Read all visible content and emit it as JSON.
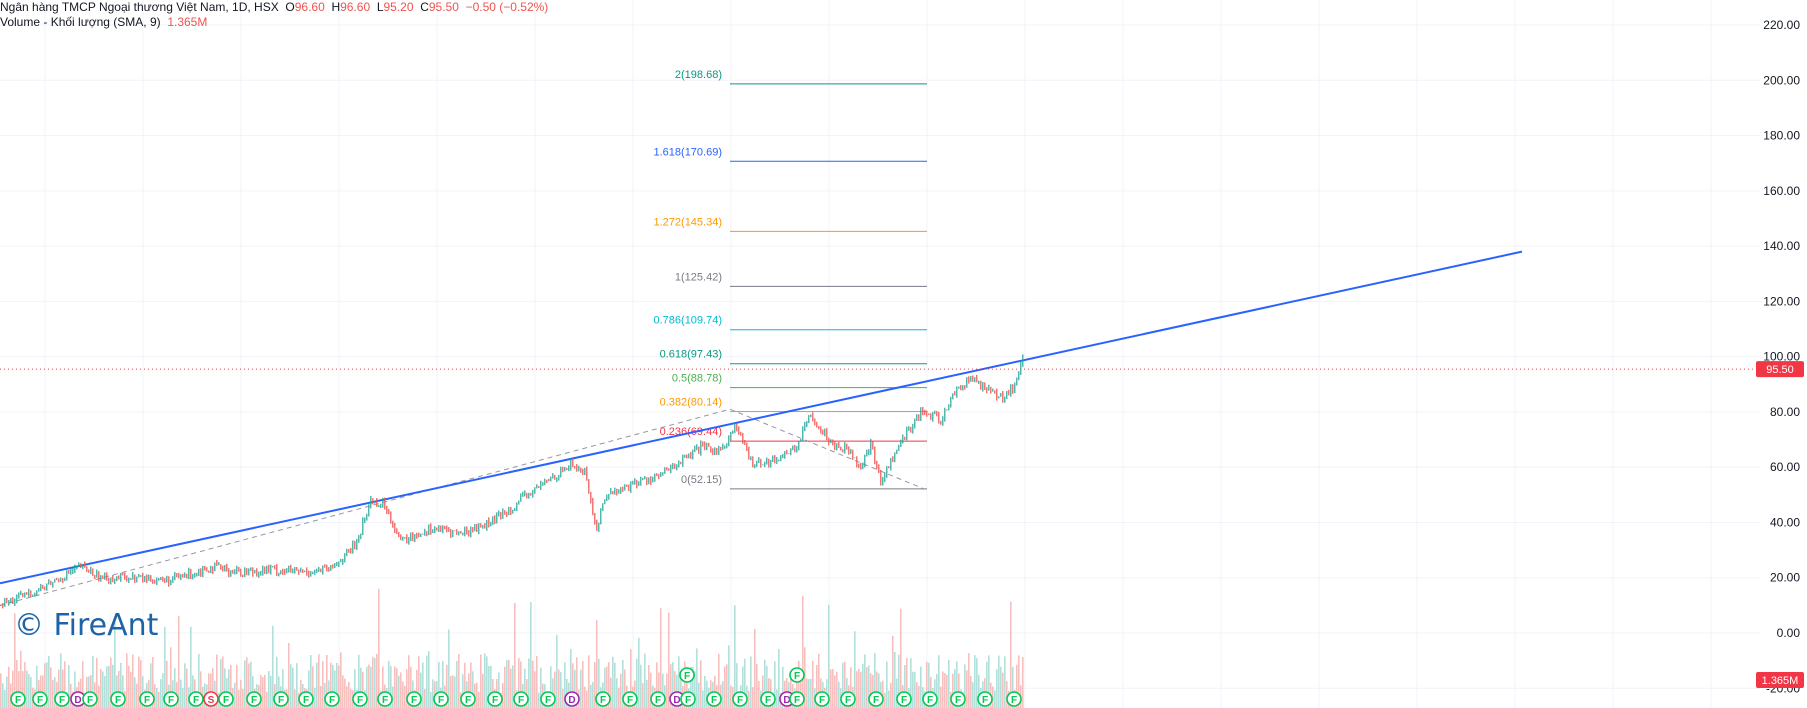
{
  "legend": {
    "symbol": "Ngân hàng TMCP Ngoại thương Việt Nam, 1D, HSX",
    "open_label": "O",
    "open": "96.60",
    "high_label": "H",
    "high": "96.60",
    "low_label": "L",
    "low": "95.20",
    "close_label": "C",
    "close": "95.50",
    "change": "−0.50 (−0.52%)",
    "volume_title": "Volume - Khối lượng (SMA, 9)",
    "volume_value": "1.365M"
  },
  "watermark": "© FireAnt",
  "colors": {
    "up": "#26a69a",
    "down": "#ef5350",
    "trend": "#2962ff",
    "fib_0": "#787b86",
    "fib_0236": "#f23645",
    "fib_0382": "#ff9800",
    "fib_05": "#4caf50",
    "fib_0618": "#089981",
    "fib_0786": "#00bcd4",
    "fib_1": "#787b86",
    "fib_1272": "#ff9800",
    "fib_1618": "#2962ff",
    "fib_2": "#089981",
    "price_tag": "#f23645"
  },
  "chart_data": {
    "type": "line",
    "title": "",
    "y_axis": {
      "range": [
        -20,
        220
      ],
      "ticks": [
        220,
        200,
        180,
        160,
        140,
        120,
        100,
        80,
        60,
        40,
        20,
        0,
        -20
      ],
      "tick_labels": [
        "220.00",
        "200.00",
        "180.00",
        "160.00",
        "140.00",
        "120.00",
        "100.00",
        "80.00",
        "60.00",
        "40.00",
        "20.00",
        "0.00",
        "-20.00"
      ]
    },
    "grid": true,
    "last_price": 95.5,
    "last_price_label": "95.50",
    "volume_label": "1.365M",
    "price_series": {
      "name": "",
      "x": [
        0,
        40,
        80,
        100,
        130,
        170,
        210,
        240,
        270,
        300,
        330,
        355,
        370,
        385,
        400,
        430,
        460,
        490,
        520,
        550,
        570,
        585,
        595,
        605,
        620,
        640,
        660,
        680,
        700,
        720,
        735,
        750,
        770,
        795,
        810,
        830,
        850,
        860,
        870,
        880,
        890,
        905,
        920,
        940,
        955,
        970,
        985,
        1000,
        1015,
        1022
      ],
      "y": [
        10,
        16,
        24,
        20,
        20,
        19,
        24,
        22,
        23,
        22,
        23,
        32,
        48,
        46,
        33,
        38,
        36,
        40,
        48,
        56,
        61,
        58,
        37,
        50,
        52,
        55,
        57,
        62,
        67,
        66,
        75,
        62,
        62,
        67,
        79,
        69,
        66,
        60,
        68,
        55,
        62,
        72,
        80,
        77,
        88,
        92,
        89,
        85,
        90,
        99
      ]
    },
    "trendline": {
      "x": [
        0,
        1522
      ],
      "y": [
        18,
        138
      ]
    },
    "dashed_swing": {
      "x": [
        0,
        730,
        925
      ],
      "y": [
        10,
        81,
        52
      ]
    },
    "fibonacci": {
      "levels": [
        {
          "ratio": "0",
          "price": 52.15,
          "label": "0(52.15)",
          "color": "#787b86"
        },
        {
          "ratio": "0.236",
          "price": 69.44,
          "label": "0.236(69.44)",
          "color": "#f23645"
        },
        {
          "ratio": "0.382",
          "price": 80.14,
          "label": "0.382(80.14)",
          "color": "#ff9800"
        },
        {
          "ratio": "0.5",
          "price": 88.78,
          "label": "0.5(88.78)",
          "color": "#4caf50"
        },
        {
          "ratio": "0.618",
          "price": 97.43,
          "label": "0.618(97.43)",
          "color": "#089981"
        },
        {
          "ratio": "0.786",
          "price": 109.74,
          "label": "0.786(109.74)",
          "color": "#00bcd4"
        },
        {
          "ratio": "1",
          "price": 125.42,
          "label": "1(125.42)",
          "color": "#787b86"
        },
        {
          "ratio": "1.272",
          "price": 145.34,
          "label": "1.272(145.34)",
          "color": "#ff9800"
        },
        {
          "ratio": "1.618",
          "price": 170.69,
          "label": "1.618(170.69)",
          "color": "#2962ff"
        },
        {
          "ratio": "2",
          "price": 198.68,
          "label": "2(198.68)",
          "color": "#089981"
        }
      ],
      "x_start": 730,
      "x_end": 927
    },
    "event_markers": [
      {
        "x": 18,
        "label": "F"
      },
      {
        "x": 40,
        "label": "F"
      },
      {
        "x": 62,
        "label": "F"
      },
      {
        "x": 78,
        "label": "D"
      },
      {
        "x": 90,
        "label": "F"
      },
      {
        "x": 118,
        "label": "F"
      },
      {
        "x": 147,
        "label": "F"
      },
      {
        "x": 171,
        "label": "F"
      },
      {
        "x": 196,
        "label": "F"
      },
      {
        "x": 211,
        "label": "S"
      },
      {
        "x": 226,
        "label": "F"
      },
      {
        "x": 254,
        "label": "F"
      },
      {
        "x": 281,
        "label": "F"
      },
      {
        "x": 306,
        "label": "F"
      },
      {
        "x": 332,
        "label": "F"
      },
      {
        "x": 360,
        "label": "F"
      },
      {
        "x": 385,
        "label": "F"
      },
      {
        "x": 414,
        "label": "F"
      },
      {
        "x": 441,
        "label": "F"
      },
      {
        "x": 468,
        "label": "F"
      },
      {
        "x": 495,
        "label": "F"
      },
      {
        "x": 521,
        "label": "F"
      },
      {
        "x": 548,
        "label": "F"
      },
      {
        "x": 572,
        "label": "D"
      },
      {
        "x": 603,
        "label": "F"
      },
      {
        "x": 630,
        "label": "F"
      },
      {
        "x": 658,
        "label": "F"
      },
      {
        "x": 677,
        "label": "D"
      },
      {
        "x": 688,
        "label": "F"
      },
      {
        "x": 714,
        "label": "F"
      },
      {
        "x": 740,
        "label": "F"
      },
      {
        "x": 768,
        "label": "F"
      },
      {
        "x": 787,
        "label": "D"
      },
      {
        "x": 797,
        "label": "F"
      },
      {
        "x": 822,
        "label": "F"
      },
      {
        "x": 848,
        "label": "F"
      },
      {
        "x": 876,
        "label": "F"
      },
      {
        "x": 904,
        "label": "F"
      },
      {
        "x": 930,
        "label": "F"
      },
      {
        "x": 958,
        "label": "F"
      },
      {
        "x": 985,
        "label": "F"
      },
      {
        "x": 1014,
        "label": "F"
      }
    ],
    "upper_markers": [
      {
        "x": 687,
        "label": "F"
      },
      {
        "x": 797,
        "label": "F"
      }
    ]
  }
}
